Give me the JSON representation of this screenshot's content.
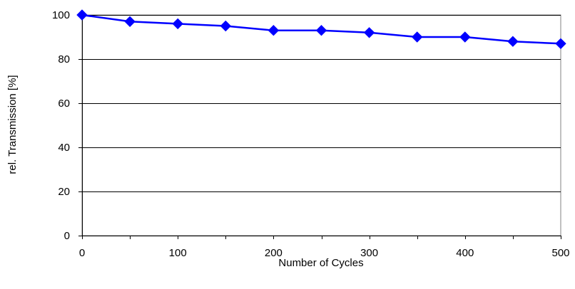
{
  "chart_data": {
    "type": "line",
    "title": "",
    "xlabel": "Number of Cycles",
    "ylabel": "rel. Transmission [%]",
    "xlim": [
      0,
      500
    ],
    "ylim": [
      0,
      100
    ],
    "xticks": [
      0,
      100,
      200,
      300,
      400,
      500
    ],
    "yticks": [
      0,
      20,
      40,
      60,
      80,
      100
    ],
    "grid": "horizontal",
    "legend": "none",
    "series": [
      {
        "color": "#0000ff",
        "marker": "diamond",
        "x": [
          0,
          50,
          100,
          150,
          200,
          250,
          300,
          350,
          400,
          450,
          500
        ],
        "y": [
          100,
          97,
          96,
          95,
          93,
          93,
          92,
          90,
          90,
          88,
          87
        ]
      }
    ]
  }
}
